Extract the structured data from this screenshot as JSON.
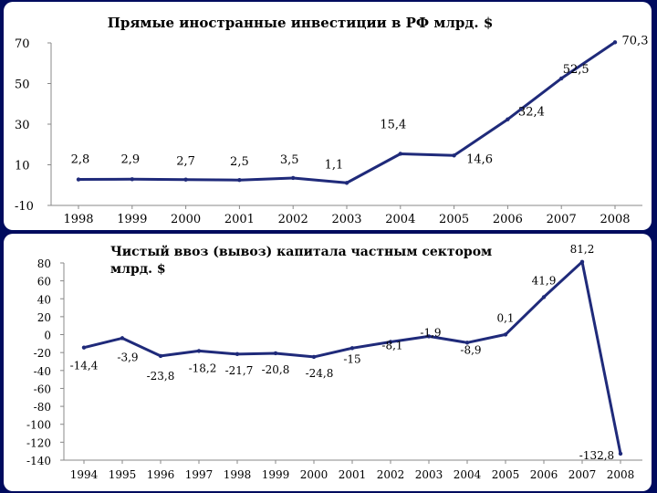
{
  "chart_data": [
    {
      "type": "line",
      "title": "Прямые иностранные инвестиции в РФ млрд. $",
      "categories": [
        "1998",
        "1999",
        "2000",
        "2001",
        "2002",
        "2003",
        "2004",
        "2005",
        "2006",
        "2007",
        "2008"
      ],
      "values": [
        2.8,
        2.9,
        2.7,
        2.5,
        3.5,
        1.1,
        15.4,
        14.6,
        32.4,
        52.5,
        70.3
      ],
      "data_labels": [
        "2,8",
        "2,9",
        "2,7",
        "2,5",
        "3,5",
        "1,1",
        "15,4",
        "14,6",
        "32,4",
        "52,5",
        "70,3"
      ],
      "ytick_labels": [
        "70",
        "50",
        "30",
        "10",
        "-10"
      ],
      "ylim": [
        -10,
        70
      ],
      "grid": false,
      "line_color": "#1f2a7a"
    },
    {
      "type": "line",
      "title": "Чистый ввоз (вывоз) капитала частным сектором млрд. $",
      "categories": [
        "1994",
        "1995",
        "1996",
        "1997",
        "1998",
        "1999",
        "2000",
        "2001",
        "2002",
        "2003",
        "2004",
        "2005",
        "2006",
        "2007",
        "2008"
      ],
      "values": [
        -14.4,
        -3.9,
        -23.8,
        -18.2,
        -21.7,
        -20.8,
        -24.8,
        -15,
        -8.1,
        -1.9,
        -8.9,
        0.1,
        41.9,
        81.2,
        -132.8
      ],
      "data_labels": [
        "-14,4",
        "-3,9",
        "-23,8",
        "-18,2",
        "-21,7",
        "-20,8",
        "-24,8",
        "-15",
        "-8,1",
        "-1,9",
        "-8,9",
        "0,1",
        "41,9",
        "81,2",
        "-132,8"
      ],
      "ytick_labels": [
        "80",
        "60",
        "40",
        "20",
        "0",
        "-20",
        "-40",
        "-60",
        "-80",
        "-100",
        "-120",
        "-140"
      ],
      "ylim": [
        -140,
        80
      ],
      "grid": false,
      "line_color": "#1f2a7a"
    }
  ]
}
